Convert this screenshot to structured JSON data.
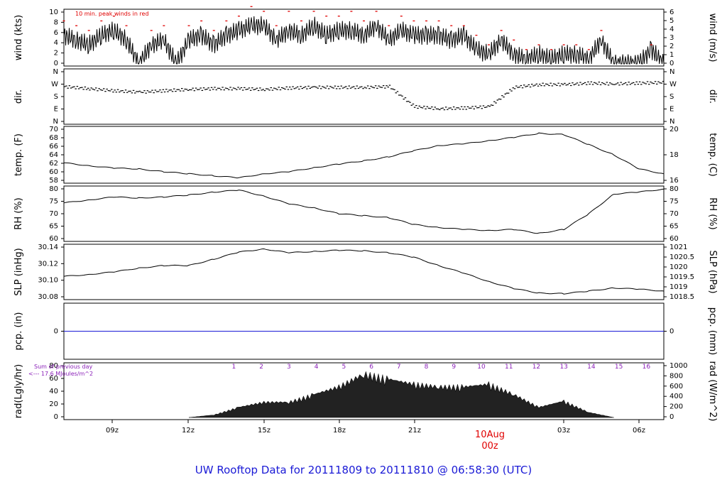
{
  "title": "UW Rooftop Data for 20111809  to  20111810 @ 06:58:30  (UTC)",
  "annotations": {
    "wind_note": "10 min. peak winds in red",
    "rad_note_line1": "Sum of previous day",
    "rad_note_line2": "<--- 17.6 MJoules/m^2",
    "date_label": "10Aug",
    "date_sub": "00z"
  },
  "colors": {
    "line": "#000000",
    "peak": "#e00000",
    "precip": "#1a1ad6",
    "hours": "#8a1fb8",
    "title": "#1a1ad6"
  },
  "chart_data": [
    {
      "type": "line",
      "name": "wind",
      "ylabel_left": "wind (kts)",
      "ylabel_right": "wind (m/s)",
      "ylim": [
        0,
        11
      ],
      "yticks_left": [
        "0",
        "2",
        "4",
        "6",
        "8",
        "10"
      ],
      "yticks_right": [
        "0",
        "1",
        "2",
        "3",
        "4",
        "5",
        "6"
      ],
      "x": [
        0,
        0.5,
        1,
        1.5,
        2,
        2.5,
        3,
        3.5,
        4,
        4.5,
        5,
        5.5,
        6,
        6.5,
        7,
        7.5,
        8,
        8.5,
        9,
        9.5,
        10,
        10.5,
        11,
        11.5,
        12,
        12.5,
        13,
        13.5,
        14,
        14.5,
        15,
        15.5,
        16,
        16.5,
        17,
        17.5,
        18,
        18.5,
        19,
        19.5,
        20,
        20.5,
        21,
        21.5,
        22,
        22.5,
        23,
        23.5,
        24
      ],
      "values": [
        6,
        5,
        4,
        6,
        7,
        5,
        0,
        4,
        5,
        0,
        5,
        6,
        4,
        6,
        7,
        8,
        8,
        5,
        7,
        6,
        8,
        6,
        7,
        7,
        6,
        8,
        5,
        7,
        6,
        6,
        6,
        5,
        6,
        3,
        2,
        5,
        2,
        1,
        2,
        1,
        2,
        2,
        1,
        5,
        0,
        0,
        0,
        3,
        0
      ],
      "peaks": [
        9,
        8,
        7,
        9,
        10,
        8,
        0,
        7,
        8,
        0,
        8,
        9,
        7,
        9,
        10,
        12,
        11,
        8,
        11,
        9,
        11,
        10,
        10,
        11,
        9,
        11,
        8,
        10,
        9,
        9,
        9,
        8,
        8,
        6,
        4,
        7,
        5,
        3,
        4,
        3,
        4,
        4,
        3,
        7,
        0,
        0,
        0,
        4,
        0
      ]
    },
    {
      "type": "scatter",
      "name": "direction",
      "ylabel_left": "dir.",
      "ylabel_right": "dir.",
      "yticks_left": [
        "N",
        "E",
        "S",
        "W",
        "N"
      ],
      "yticks_right": [
        "N",
        "E",
        "S",
        "W",
        "N"
      ],
      "ylim": [
        0,
        360
      ],
      "x": [
        0,
        1,
        2,
        3,
        4,
        5,
        6,
        7,
        8,
        9,
        10,
        11,
        12,
        13,
        14,
        15,
        16,
        17,
        18,
        19,
        20,
        21,
        22,
        23,
        24
      ],
      "values": [
        255,
        240,
        225,
        215,
        225,
        235,
        240,
        240,
        235,
        245,
        250,
        250,
        250,
        255,
        110,
        95,
        100,
        110,
        250,
        270,
        270,
        280,
        275,
        280,
        285
      ]
    },
    {
      "type": "line",
      "name": "temperature",
      "ylabel_left": "temp. (F)",
      "ylabel_right": "temp. (C)",
      "ylim": [
        57,
        70
      ],
      "yticks_left": [
        "58",
        "60",
        "62",
        "64",
        "66",
        "68",
        "70"
      ],
      "yticks_right": [
        "16",
        "18",
        "20"
      ],
      "x": [
        0,
        1,
        2,
        3,
        4,
        5,
        6,
        7,
        8,
        9,
        10,
        11,
        12,
        13,
        14,
        15,
        16,
        17,
        18,
        19,
        20,
        21,
        22,
        23,
        24
      ],
      "values": [
        61.5,
        60.8,
        60.2,
        60,
        59.3,
        58.8,
        58.3,
        57.8,
        58.8,
        59.3,
        60.3,
        61.2,
        62,
        63,
        64.5,
        65.8,
        66.2,
        67,
        67.8,
        68.8,
        68.5,
        66,
        63.5,
        60,
        58.8
      ]
    },
    {
      "type": "line",
      "name": "relative_humidity",
      "ylabel_left": "RH (%)",
      "ylabel_right": "RH (%)",
      "ylim": [
        57,
        83
      ],
      "yticks_left": [
        "60",
        "65",
        "70",
        "75",
        "80"
      ],
      "yticks_right": [
        "60",
        "65",
        "70",
        "75",
        "80"
      ],
      "x": [
        0,
        1,
        2,
        3,
        4,
        5,
        6,
        7,
        8,
        9,
        10,
        11,
        12,
        13,
        14,
        15,
        16,
        17,
        18,
        19,
        20,
        21,
        22,
        23,
        24
      ],
      "values": [
        75.5,
        77,
        78.5,
        78,
        78.5,
        79.5,
        81,
        82,
        79,
        75,
        73,
        70,
        69,
        68,
        64.5,
        63,
        62,
        61.5,
        62,
        60,
        62,
        70,
        80,
        81,
        82.5
      ]
    },
    {
      "type": "line",
      "name": "sea_level_pressure",
      "ylabel_left": "SLP (inHg)",
      "ylabel_right": "SLP (hPa)",
      "ylim": [
        30.07,
        30.15
      ],
      "yticks_left": [
        "30.08",
        "30.10",
        "30.12",
        "30.14"
      ],
      "yticks_right": [
        "1018.5",
        "1019",
        "1019.5",
        "1020",
        "1020.5",
        "1021"
      ],
      "x": [
        0,
        1,
        2,
        3,
        4,
        5,
        6,
        7,
        8,
        9,
        10,
        11,
        12,
        13,
        14,
        15,
        16,
        17,
        18,
        19,
        20,
        21,
        22,
        23,
        24
      ],
      "values": [
        30.103,
        30.106,
        30.11,
        30.116,
        30.12,
        30.12,
        30.13,
        30.141,
        30.146,
        30.14,
        30.142,
        30.144,
        30.143,
        30.14,
        30.133,
        30.12,
        30.108,
        30.095,
        30.084,
        30.077,
        30.076,
        30.08,
        30.085,
        30.083,
        30.08
      ]
    },
    {
      "type": "line",
      "name": "precipitation",
      "ylabel_left": "pcp. (in)",
      "ylabel_right": "pcp. (mm)",
      "yticks_left": [
        "0"
      ],
      "yticks_right": [
        "0"
      ],
      "x": [
        0,
        24
      ],
      "values": [
        0,
        0
      ]
    },
    {
      "type": "area",
      "name": "radiation",
      "ylabel_left": "rad(Lgly/hr)",
      "ylabel_right": "rad (W/m^2)",
      "ylim": [
        0,
        95
      ],
      "yticks_left": [
        "0",
        "20",
        "40",
        "60",
        "80"
      ],
      "yticks_right": [
        "0",
        "200",
        "400",
        "600",
        "800",
        "1000"
      ],
      "hour_labels": [
        "1",
        "2",
        "3",
        "4",
        "5",
        "6",
        "7",
        "8",
        "9",
        "10",
        "11",
        "12",
        "13",
        "14",
        "15",
        "16"
      ],
      "x": [
        5,
        6,
        7,
        8,
        9,
        10,
        11,
        12,
        13,
        14,
        15,
        16,
        17,
        18,
        19,
        20,
        21,
        22
      ],
      "values": [
        0,
        5,
        20,
        30,
        30,
        45,
        60,
        85,
        75,
        65,
        60,
        60,
        65,
        45,
        20,
        32,
        10,
        0
      ]
    }
  ],
  "x_axis": {
    "ticks": [
      "09z",
      "12z",
      "15z",
      "18z",
      "21z",
      "03z",
      "06z"
    ]
  }
}
